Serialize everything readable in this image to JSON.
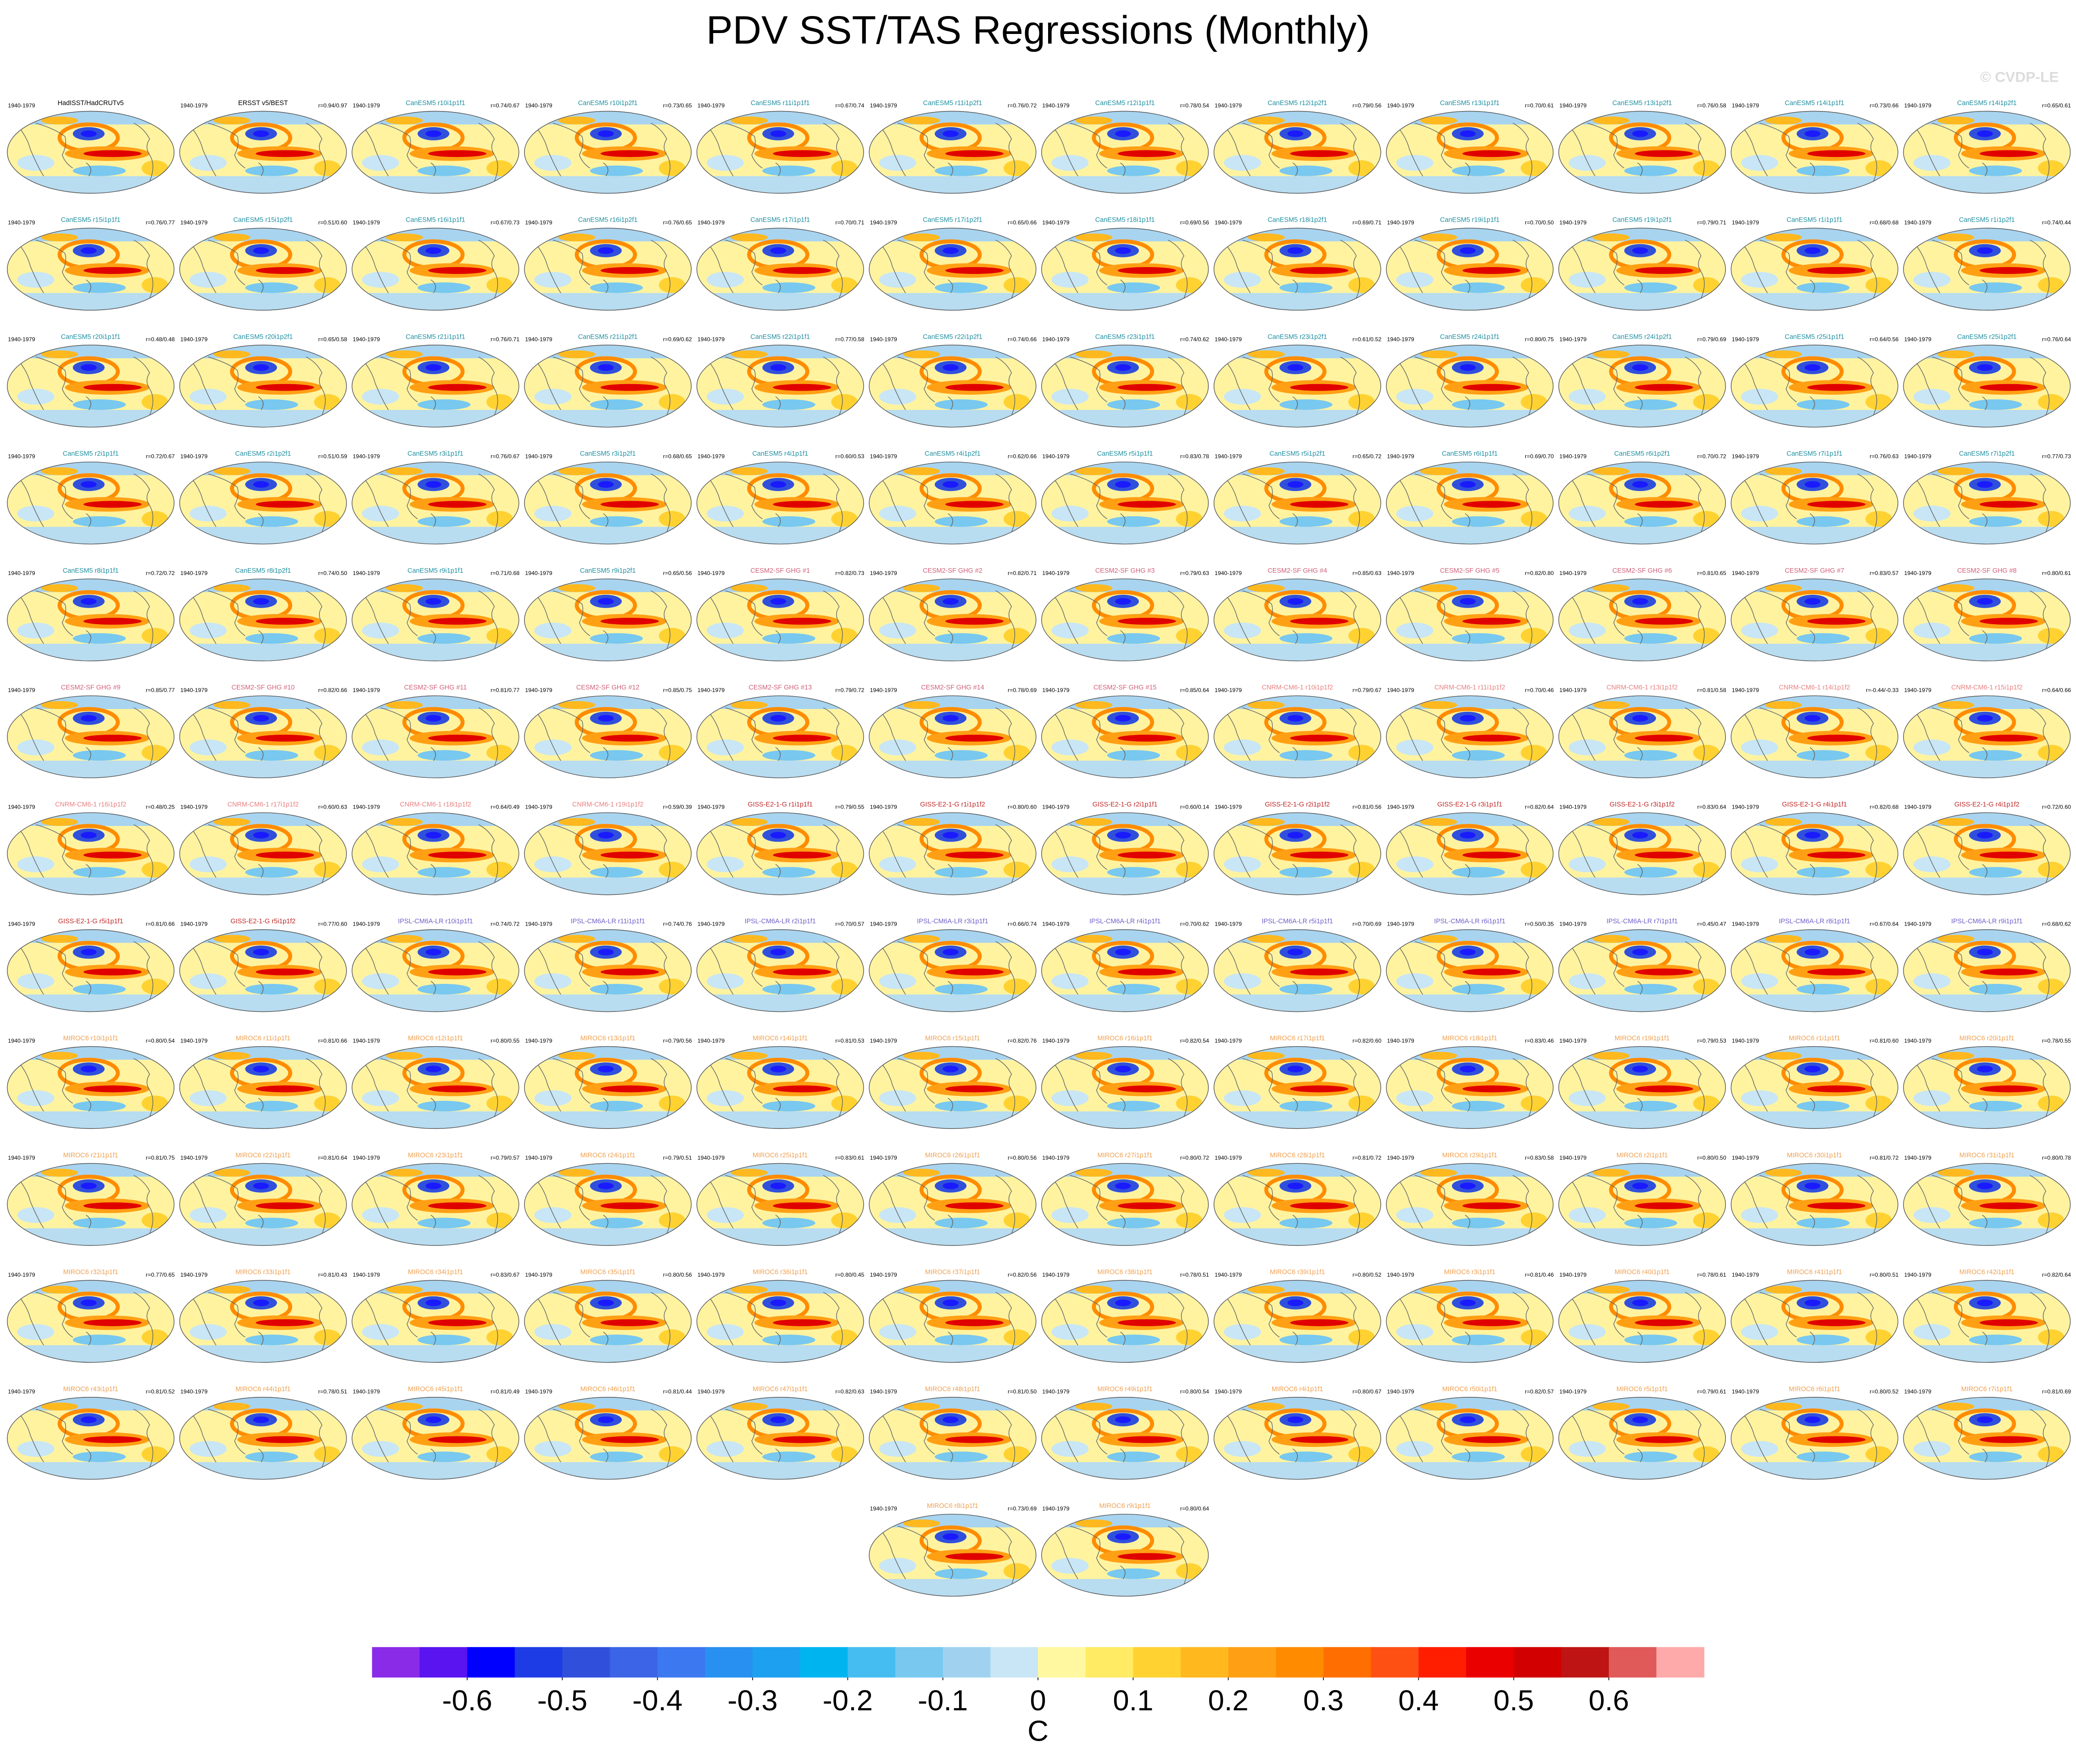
{
  "title": "PDV SST/TAS Regressions (Monthly)",
  "watermark": "© CVDP-LE",
  "period": "1940-1979",
  "panels": [
    {
      "title": "HadISST/HadCRUTv5",
      "color": "#000000"
    },
    {
      "title": "ERSST v5/BEST",
      "r": "r=0.94/0.97",
      "color": "#000000"
    },
    {
      "title": "CanESM5 r10i1p1f1",
      "r": "r=0.74/0.67",
      "color": "#1f8fa0"
    },
    {
      "title": "CanESM5 r10i1p2f1",
      "r": "r=0.73/0.65",
      "color": "#1f8fa0"
    },
    {
      "title": "CanESM5 r11i1p1f1",
      "r": "r=0.67/0.74",
      "color": "#1f8fa0"
    },
    {
      "title": "CanESM5 r11i1p2f1",
      "r": "r=0.76/0.72",
      "color": "#1f8fa0"
    },
    {
      "title": "CanESM5 r12i1p1f1",
      "r": "r=0.78/0.54",
      "color": "#1f8fa0"
    },
    {
      "title": "CanESM5 r12i1p2f1",
      "r": "r=0.79/0.56",
      "color": "#1f8fa0"
    },
    {
      "title": "CanESM5 r13i1p1f1",
      "r": "r=0.70/0.61",
      "color": "#1f8fa0"
    },
    {
      "title": "CanESM5 r13i1p2f1",
      "r": "r=0.76/0.58",
      "color": "#1f8fa0"
    },
    {
      "title": "CanESM5 r14i1p1f1",
      "r": "r=0.73/0.66",
      "color": "#1f8fa0"
    },
    {
      "title": "CanESM5 r14i1p2f1",
      "r": "r=0.65/0.61",
      "color": "#1f8fa0"
    },
    {
      "title": "CanESM5 r15i1p1f1",
      "r": "r=0.76/0.77",
      "color": "#1f8fa0"
    },
    {
      "title": "CanESM5 r15i1p2f1",
      "r": "r=0.51/0.60",
      "color": "#1f8fa0"
    },
    {
      "title": "CanESM5 r16i1p1f1",
      "r": "r=0.67/0.73",
      "color": "#1f8fa0"
    },
    {
      "title": "CanESM5 r16i1p2f1",
      "r": "r=0.76/0.65",
      "color": "#1f8fa0"
    },
    {
      "title": "CanESM5 r17i1p1f1",
      "r": "r=0.70/0.71",
      "color": "#1f8fa0"
    },
    {
      "title": "CanESM5 r17i1p2f1",
      "r": "r=0.65/0.66",
      "color": "#1f8fa0"
    },
    {
      "title": "CanESM5 r18i1p1f1",
      "r": "r=0.69/0.56",
      "color": "#1f8fa0"
    },
    {
      "title": "CanESM5 r18i1p2f1",
      "r": "r=0.69/0.71",
      "color": "#1f8fa0"
    },
    {
      "title": "CanESM5 r19i1p1f1",
      "r": "r=0.70/0.50",
      "color": "#1f8fa0"
    },
    {
      "title": "CanESM5 r19i1p2f1",
      "r": "r=0.79/0.71",
      "color": "#1f8fa0"
    },
    {
      "title": "CanESM5 r1i1p1f1",
      "r": "r=0.68/0.68",
      "color": "#1f8fa0"
    },
    {
      "title": "CanESM5 r1i1p2f1",
      "r": "r=0.74/0.44",
      "color": "#1f8fa0"
    },
    {
      "title": "CanESM5 r20i1p1f1",
      "r": "r=0.48/0.48",
      "color": "#1f8fa0"
    },
    {
      "title": "CanESM5 r20i1p2f1",
      "r": "r=0.65/0.58",
      "color": "#1f8fa0"
    },
    {
      "title": "CanESM5 r21i1p1f1",
      "r": "r=0.76/0.71",
      "color": "#1f8fa0"
    },
    {
      "title": "CanESM5 r21i1p2f1",
      "r": "r=0.69/0.62",
      "color": "#1f8fa0"
    },
    {
      "title": "CanESM5 r22i1p1f1",
      "r": "r=0.77/0.58",
      "color": "#1f8fa0"
    },
    {
      "title": "CanESM5 r22i1p2f1",
      "r": "r=0.74/0.66",
      "color": "#1f8fa0"
    },
    {
      "title": "CanESM5 r23i1p1f1",
      "r": "r=0.74/0.62",
      "color": "#1f8fa0"
    },
    {
      "title": "CanESM5 r23i1p2f1",
      "r": "r=0.61/0.52",
      "color": "#1f8fa0"
    },
    {
      "title": "CanESM5 r24i1p1f1",
      "r": "r=0.80/0.75",
      "color": "#1f8fa0"
    },
    {
      "title": "CanESM5 r24i1p2f1",
      "r": "r=0.79/0.69",
      "color": "#1f8fa0"
    },
    {
      "title": "CanESM5 r25i1p1f1",
      "r": "r=0.64/0.56",
      "color": "#1f8fa0"
    },
    {
      "title": "CanESM5 r25i1p2f1",
      "r": "r=0.76/0.64",
      "color": "#1f8fa0"
    },
    {
      "title": "CanESM5 r2i1p1f1",
      "r": "r=0.72/0.67",
      "color": "#1f8fa0"
    },
    {
      "title": "CanESM5 r2i1p2f1",
      "r": "r=0.51/0.59",
      "color": "#1f8fa0"
    },
    {
      "title": "CanESM5 r3i1p1f1",
      "r": "r=0.76/0.67",
      "color": "#1f8fa0"
    },
    {
      "title": "CanESM5 r3i1p2f1",
      "r": "r=0.68/0.65",
      "color": "#1f8fa0"
    },
    {
      "title": "CanESM5 r4i1p1f1",
      "r": "r=0.60/0.53",
      "color": "#1f8fa0"
    },
    {
      "title": "CanESM5 r4i1p2f1",
      "r": "r=0.62/0.66",
      "color": "#1f8fa0"
    },
    {
      "title": "CanESM5 r5i1p1f1",
      "r": "r=0.83/0.78",
      "color": "#1f8fa0"
    },
    {
      "title": "CanESM5 r5i1p2f1",
      "r": "r=0.65/0.72",
      "color": "#1f8fa0"
    },
    {
      "title": "CanESM5 r6i1p1f1",
      "r": "r=0.69/0.70",
      "color": "#1f8fa0"
    },
    {
      "title": "CanESM5 r6i1p2f1",
      "r": "r=0.70/0.72",
      "color": "#1f8fa0"
    },
    {
      "title": "CanESM5 r7i1p1f1",
      "r": "r=0.76/0.63",
      "color": "#1f8fa0"
    },
    {
      "title": "CanESM5 r7i1p2f1",
      "r": "r=0.77/0.73",
      "color": "#1f8fa0"
    },
    {
      "title": "CanESM5 r8i1p1f1",
      "r": "r=0.72/0.72",
      "color": "#1f8fa0"
    },
    {
      "title": "CanESM5 r8i1p2f1",
      "r": "r=0.74/0.50",
      "color": "#1f8fa0"
    },
    {
      "title": "CanESM5 r9i1p1f1",
      "r": "r=0.71/0.68",
      "color": "#1f8fa0"
    },
    {
      "title": "CanESM5 r9i1p2f1",
      "r": "r=0.65/0.56",
      "color": "#1f8fa0"
    },
    {
      "title": "CESM2-SF GHG #1",
      "r": "r=0.82/0.73",
      "color": "#d0607a"
    },
    {
      "title": "CESM2-SF GHG #2",
      "r": "r=0.82/0.71",
      "color": "#d0607a"
    },
    {
      "title": "CESM2-SF GHG #3",
      "r": "r=0.79/0.63",
      "color": "#d0607a"
    },
    {
      "title": "CESM2-SF GHG #4",
      "r": "r=0.85/0.63",
      "color": "#d0607a"
    },
    {
      "title": "CESM2-SF GHG #5",
      "r": "r=0.82/0.80",
      "color": "#d0607a"
    },
    {
      "title": "CESM2-SF GHG #6",
      "r": "r=0.81/0.65",
      "color": "#d0607a"
    },
    {
      "title": "CESM2-SF GHG #7",
      "r": "r=0.83/0.57",
      "color": "#d0607a"
    },
    {
      "title": "CESM2-SF GHG #8",
      "r": "r=0.80/0.61",
      "color": "#d0607a"
    },
    {
      "title": "CESM2-SF GHG #9",
      "r": "r=0.85/0.77",
      "color": "#d0607a"
    },
    {
      "title": "CESM2-SF GHG #10",
      "r": "r=0.82/0.66",
      "color": "#d0607a"
    },
    {
      "title": "CESM2-SF GHG #11",
      "r": "r=0.81/0.77",
      "color": "#d0607a"
    },
    {
      "title": "CESM2-SF GHG #12",
      "r": "r=0.85/0.75",
      "color": "#d0607a"
    },
    {
      "title": "CESM2-SF GHG #13",
      "r": "r=0.79/0.72",
      "color": "#d0607a"
    },
    {
      "title": "CESM2-SF GHG #14",
      "r": "r=0.78/0.69",
      "color": "#d0607a"
    },
    {
      "title": "CESM2-SF GHG #15",
      "r": "r=0.85/0.64",
      "color": "#d0607a"
    },
    {
      "title": "CNRM-CM6-1 r10i1p1f2",
      "r": "r=0.79/0.67",
      "color": "#e88080"
    },
    {
      "title": "CNRM-CM6-1 r11i1p1f2",
      "r": "r=0.70/0.46",
      "color": "#e88080"
    },
    {
      "title": "CNRM-CM6-1 r13i1p1f2",
      "r": "r=0.81/0.58",
      "color": "#e88080"
    },
    {
      "title": "CNRM-CM6-1 r14i1p1f2",
      "r": "r=-0.44/-0.33",
      "color": "#e88080"
    },
    {
      "title": "CNRM-CM6-1 r15i1p1f2",
      "r": "r=0.64/0.66",
      "color": "#e88080"
    },
    {
      "title": "CNRM-CM6-1 r16i1p1f2",
      "r": "r=0.48/0.25",
      "color": "#e88080"
    },
    {
      "title": "CNRM-CM6-1 r17i1p1f2",
      "r": "r=0.60/0.63",
      "color": "#e88080"
    },
    {
      "title": "CNRM-CM6-1 r18i1p1f2",
      "r": "r=0.64/0.49",
      "color": "#e88080"
    },
    {
      "title": "CNRM-CM6-1 r19i1p1f2",
      "r": "r=0.59/0.39",
      "color": "#e88080"
    },
    {
      "title": "GISS-E2-1-G r1i1p1f1",
      "r": "r=0.79/0.55",
      "color": "#c02828"
    },
    {
      "title": "GISS-E2-1-G r1i1p1f2",
      "r": "r=0.80/0.60",
      "color": "#c02828"
    },
    {
      "title": "GISS-E2-1-G r2i1p1f1",
      "r": "r=0.60/0.14",
      "color": "#c02828"
    },
    {
      "title": "GISS-E2-1-G r2i1p1f2",
      "r": "r=0.81/0.56",
      "color": "#c02828"
    },
    {
      "title": "GISS-E2-1-G r3i1p1f1",
      "r": "r=0.82/0.64",
      "color": "#c02828"
    },
    {
      "title": "GISS-E2-1-G r3i1p1f2",
      "r": "r=0.83/0.64",
      "color": "#c02828"
    },
    {
      "title": "GISS-E2-1-G r4i1p1f1",
      "r": "r=0.82/0.68",
      "color": "#c02828"
    },
    {
      "title": "GISS-E2-1-G r4i1p1f2",
      "r": "r=0.72/0.60",
      "color": "#c02828"
    },
    {
      "title": "GISS-E2-1-G r5i1p1f1",
      "r": "r=0.81/0.66",
      "color": "#c02828"
    },
    {
      "title": "GISS-E2-1-G r5i1p1f2",
      "r": "r=0.77/0.60",
      "color": "#c02828"
    },
    {
      "title": "IPSL-CM6A-LR r10i1p1f1",
      "r": "r=0.74/0.72",
      "color": "#7060c8"
    },
    {
      "title": "IPSL-CM6A-LR r11i1p1f1",
      "r": "r=0.74/0.76",
      "color": "#7060c8"
    },
    {
      "title": "IPSL-CM6A-LR r2i1p1f1",
      "r": "r=0.70/0.57",
      "color": "#7060c8"
    },
    {
      "title": "IPSL-CM6A-LR r3i1p1f1",
      "r": "r=0.66/0.74",
      "color": "#7060c8"
    },
    {
      "title": "IPSL-CM6A-LR r4i1p1f1",
      "r": "r=0.70/0.62",
      "color": "#7060c8"
    },
    {
      "title": "IPSL-CM6A-LR r5i1p1f1",
      "r": "r=0.70/0.69",
      "color": "#7060c8"
    },
    {
      "title": "IPSL-CM6A-LR r6i1p1f1",
      "r": "r=0.50/0.35",
      "color": "#7060c8"
    },
    {
      "title": "IPSL-CM6A-LR r7i1p1f1",
      "r": "r=0.45/0.47",
      "color": "#7060c8"
    },
    {
      "title": "IPSL-CM6A-LR r8i1p1f1",
      "r": "r=0.67/0.64",
      "color": "#7060c8"
    },
    {
      "title": "IPSL-CM6A-LR r9i1p1f1",
      "r": "r=0.68/0.62",
      "color": "#7060c8"
    },
    {
      "title": "MIROC6 r10i1p1f1",
      "r": "r=0.80/0.54",
      "color": "#f0a050"
    },
    {
      "title": "MIROC6 r11i1p1f1",
      "r": "r=0.81/0.66",
      "color": "#f0a050"
    },
    {
      "title": "MIROC6 r12i1p1f1",
      "r": "r=0.80/0.55",
      "color": "#f0a050"
    },
    {
      "title": "MIROC6 r13i1p1f1",
      "r": "r=0.79/0.56",
      "color": "#f0a050"
    },
    {
      "title": "MIROC6 r14i1p1f1",
      "r": "r=0.81/0.53",
      "color": "#f0a050"
    },
    {
      "title": "MIROC6 r15i1p1f1",
      "r": "r=0.82/0.76",
      "color": "#f0a050"
    },
    {
      "title": "MIROC6 r16i1p1f1",
      "r": "r=0.82/0.54",
      "color": "#f0a050"
    },
    {
      "title": "MIROC6 r17i1p1f1",
      "r": "r=0.82/0.60",
      "color": "#f0a050"
    },
    {
      "title": "MIROC6 r18i1p1f1",
      "r": "r=0.83/0.46",
      "color": "#f0a050"
    },
    {
      "title": "MIROC6 r19i1p1f1",
      "r": "r=0.79/0.53",
      "color": "#f0a050"
    },
    {
      "title": "MIROC6 r1i1p1f1",
      "r": "r=0.81/0.60",
      "color": "#f0a050"
    },
    {
      "title": "MIROC6 r20i1p1f1",
      "r": "r=0.78/0.55",
      "color": "#f0a050"
    },
    {
      "title": "MIROC6 r21i1p1f1",
      "r": "r=0.81/0.75",
      "color": "#f0a050"
    },
    {
      "title": "MIROC6 r22i1p1f1",
      "r": "r=0.81/0.64",
      "color": "#f0a050"
    },
    {
      "title": "MIROC6 r23i1p1f1",
      "r": "r=0.79/0.57",
      "color": "#f0a050"
    },
    {
      "title": "MIROC6 r24i1p1f1",
      "r": "r=0.79/0.51",
      "color": "#f0a050"
    },
    {
      "title": "MIROC6 r25i1p1f1",
      "r": "r=0.83/0.61",
      "color": "#f0a050"
    },
    {
      "title": "MIROC6 r26i1p1f1",
      "r": "r=0.80/0.56",
      "color": "#f0a050"
    },
    {
      "title": "MIROC6 r27i1p1f1",
      "r": "r=0.80/0.72",
      "color": "#f0a050"
    },
    {
      "title": "MIROC6 r28i1p1f1",
      "r": "r=0.81/0.72",
      "color": "#f0a050"
    },
    {
      "title": "MIROC6 r29i1p1f1",
      "r": "r=0.83/0.58",
      "color": "#f0a050"
    },
    {
      "title": "MIROC6 r2i1p1f1",
      "r": "r=0.80/0.50",
      "color": "#f0a050"
    },
    {
      "title": "MIROC6 r30i1p1f1",
      "r": "r=0.81/0.72",
      "color": "#f0a050"
    },
    {
      "title": "MIROC6 r31i1p1f1",
      "r": "r=0.80/0.78",
      "color": "#f0a050"
    },
    {
      "title": "MIROC6 r32i1p1f1",
      "r": "r=0.77/0.65",
      "color": "#f0a050"
    },
    {
      "title": "MIROC6 r33i1p1f1",
      "r": "r=0.81/0.43",
      "color": "#f0a050"
    },
    {
      "title": "MIROC6 r34i1p1f1",
      "r": "r=0.83/0.67",
      "color": "#f0a050"
    },
    {
      "title": "MIROC6 r35i1p1f1",
      "r": "r=0.80/0.56",
      "color": "#f0a050"
    },
    {
      "title": "MIROC6 r36i1p1f1",
      "r": "r=0.80/0.45",
      "color": "#f0a050"
    },
    {
      "title": "MIROC6 r37i1p1f1",
      "r": "r=0.82/0.56",
      "color": "#f0a050"
    },
    {
      "title": "MIROC6 r38i1p1f1",
      "r": "r=0.78/0.51",
      "color": "#f0a050"
    },
    {
      "title": "MIROC6 r39i1p1f1",
      "r": "r=0.80/0.52",
      "color": "#f0a050"
    },
    {
      "title": "MIROC6 r3i1p1f1",
      "r": "r=0.81/0.46",
      "color": "#f0a050"
    },
    {
      "title": "MIROC6 r40i1p1f1",
      "r": "r=0.78/0.61",
      "color": "#f0a050"
    },
    {
      "title": "MIROC6 r41i1p1f1",
      "r": "r=0.80/0.51",
      "color": "#f0a050"
    },
    {
      "title": "MIROC6 r42i1p1f1",
      "r": "r=0.82/0.64",
      "color": "#f0a050"
    },
    {
      "title": "MIROC6 r43i1p1f1",
      "r": "r=0.81/0.52",
      "color": "#f0a050"
    },
    {
      "title": "MIROC6 r44i1p1f1",
      "r": "r=0.78/0.51",
      "color": "#f0a050"
    },
    {
      "title": "MIROC6 r45i1p1f1",
      "r": "r=0.81/0.49",
      "color": "#f0a050"
    },
    {
      "title": "MIROC6 r46i1p1f1",
      "r": "r=0.81/0.44",
      "color": "#f0a050"
    },
    {
      "title": "MIROC6 r47i1p1f1",
      "r": "r=0.82/0.63",
      "color": "#f0a050"
    },
    {
      "title": "MIROC6 r48i1p1f1",
      "r": "r=0.81/0.50",
      "color": "#f0a050"
    },
    {
      "title": "MIROC6 r49i1p1f1",
      "r": "r=0.80/0.54",
      "color": "#f0a050"
    },
    {
      "title": "MIROC6 r4i1p1f1",
      "r": "r=0.80/0.67",
      "color": "#f0a050"
    },
    {
      "title": "MIROC6 r50i1p1f1",
      "r": "r=0.82/0.57",
      "color": "#f0a050"
    },
    {
      "title": "MIROC6 r5i1p1f1",
      "r": "r=0.79/0.61",
      "color": "#f0a050"
    },
    {
      "title": "MIROC6 r6i1p1f1",
      "r": "r=0.80/0.52",
      "color": "#f0a050"
    },
    {
      "title": "MIROC6 r7i1p1f1",
      "r": "r=0.81/0.69",
      "color": "#f0a050"
    },
    {
      "title": "MIROC6 r8i1p1f1",
      "r": "r=0.73/0.69",
      "color": "#f0a050"
    },
    {
      "title": "MIROC6 r9i1p1f1",
      "r": "r=0.80/0.64",
      "color": "#f0a050"
    }
  ],
  "colorbar": {
    "lim": [
      -0.7,
      0.7
    ],
    "ticks": [
      -0.6,
      -0.5,
      -0.4,
      -0.3,
      -0.2,
      -0.1,
      0,
      0.1,
      0.2,
      0.3,
      0.4,
      0.5,
      0.6
    ],
    "label": "C",
    "colors": [
      "#8a2be8",
      "#5a14f0",
      "#0000ff",
      "#1e3ce6",
      "#3050dc",
      "#3c64e6",
      "#3c78f0",
      "#2890f0",
      "#1ea0f0",
      "#00b4f0",
      "#46bdf0",
      "#78c8f0",
      "#a0d2f0",
      "#c8e6f5",
      "#fff8a0",
      "#ffeb64",
      "#ffd232",
      "#ffb91e",
      "#ffa014",
      "#ff8c00",
      "#ff6e00",
      "#ff5014",
      "#ff1e00",
      "#eb0000",
      "#d20000",
      "#be1414",
      "#e05a5a",
      "#ffaaaa"
    ]
  }
}
